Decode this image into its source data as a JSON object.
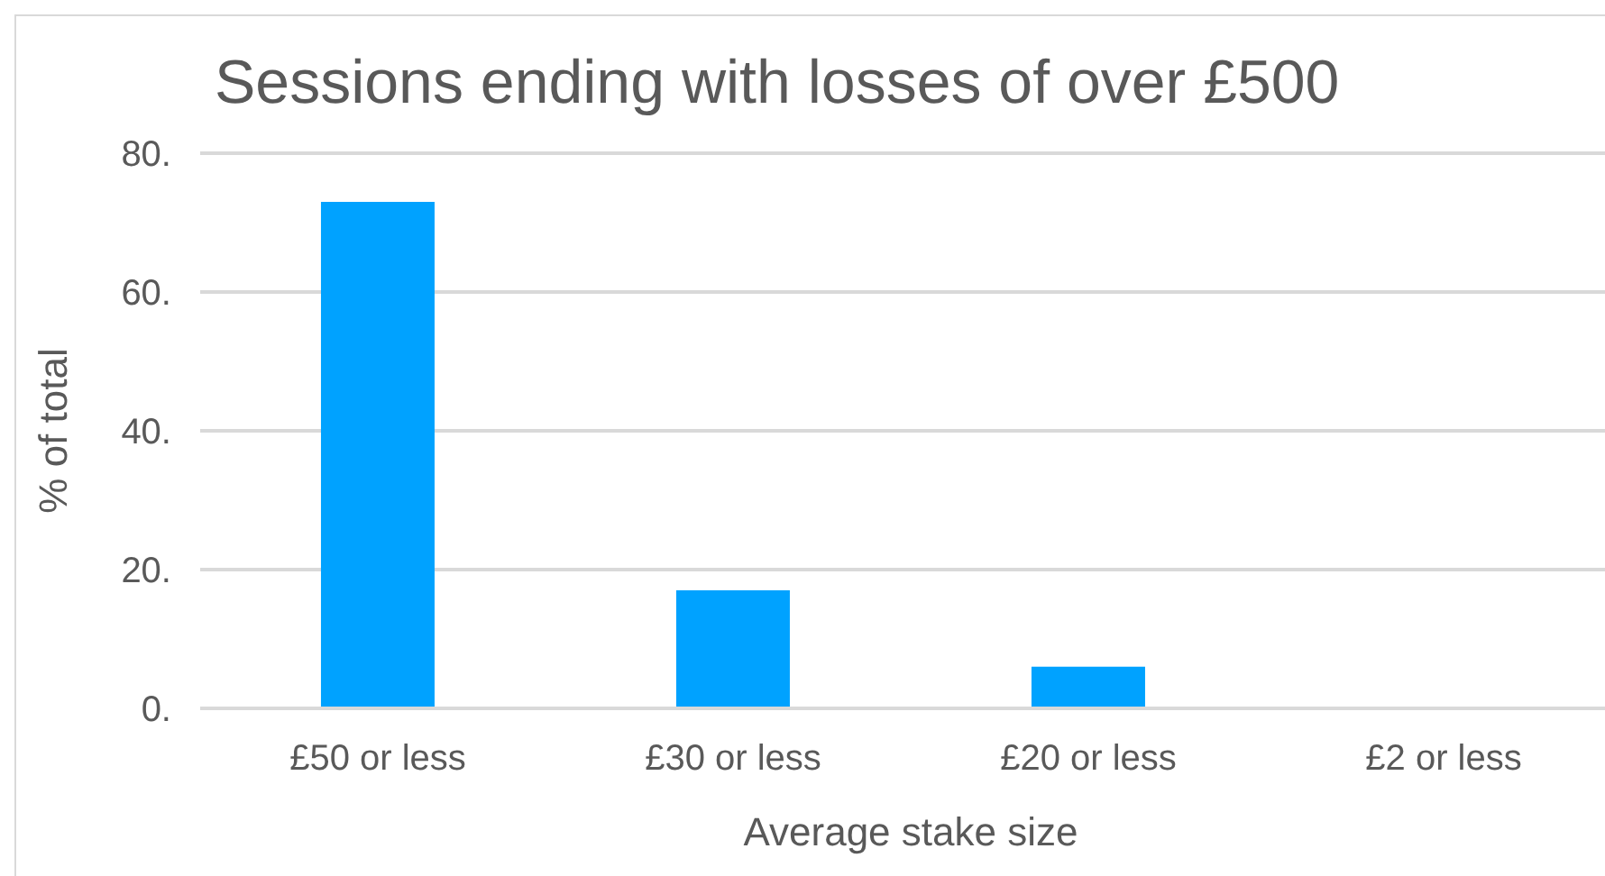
{
  "chart_data": {
    "type": "bar",
    "title": "Sessions ending with losses of over £500",
    "xlabel": "Average stake size",
    "ylabel": "% of total",
    "categories": [
      "£50 or less",
      "£30 or less",
      "£20 or less",
      "£2 or less"
    ],
    "values": [
      73,
      17,
      6,
      0
    ],
    "color": "#00a2ff",
    "ylim": [
      0,
      80
    ],
    "yticks": [
      {
        "value": 0,
        "label": "0."
      },
      {
        "value": 20,
        "label": "20."
      },
      {
        "value": 40,
        "label": "40."
      },
      {
        "value": 60,
        "label": "60."
      },
      {
        "value": 80,
        "label": "80."
      }
    ],
    "grid": "y"
  }
}
